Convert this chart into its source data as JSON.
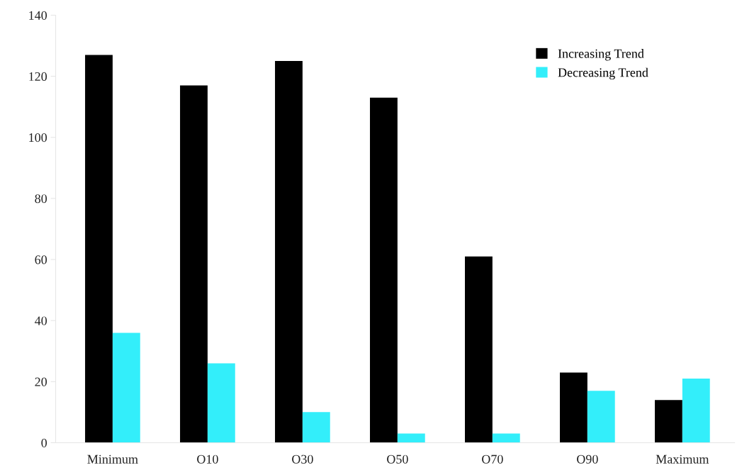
{
  "chart_data": {
    "type": "bar",
    "categories": [
      "Minimum",
      "O10",
      "O30",
      "O50",
      "O70",
      "O90",
      "Maximum"
    ],
    "series": [
      {
        "name": "Increasing Trend",
        "color": "#000000",
        "values": [
          127,
          117,
          125,
          113,
          61,
          23,
          14
        ]
      },
      {
        "name": "Decreasing Trend",
        "color": "#33eefa",
        "values": [
          36,
          26,
          10,
          3,
          3,
          17,
          21
        ]
      }
    ],
    "ylim": [
      0,
      140
    ],
    "yticks": [
      0,
      20,
      40,
      60,
      80,
      100,
      120,
      140
    ],
    "grid": false,
    "legend": "top right"
  }
}
